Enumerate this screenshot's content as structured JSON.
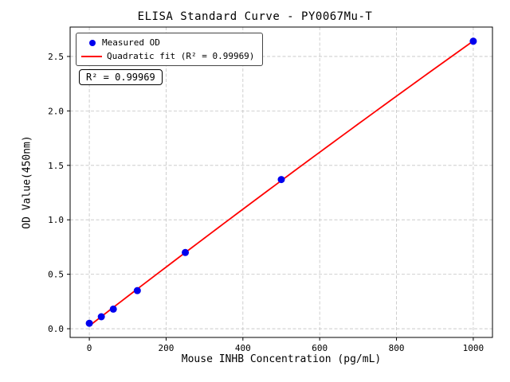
{
  "chart_data": {
    "type": "scatter",
    "title": "ELISA Standard Curve - PY0067Mu-T",
    "xlabel": "Mouse INHB Concentration (pg/mL)",
    "ylabel": "OD Value(450nm)",
    "xlim": [
      -50,
      1050
    ],
    "ylim": [
      -0.08,
      2.77
    ],
    "x_ticks": [
      0,
      200,
      400,
      600,
      800,
      1000
    ],
    "y_ticks": [
      0.0,
      0.5,
      1.0,
      1.5,
      2.0,
      2.5
    ],
    "grid": true,
    "legend_position": "upper-left",
    "series": [
      {
        "name": "Measured OD",
        "type": "scatter",
        "color": "#0000ee",
        "x": [
          0,
          31.25,
          62.5,
          125,
          250,
          500,
          1000
        ],
        "y": [
          0.05,
          0.11,
          0.18,
          0.35,
          0.7,
          1.37,
          2.64
        ]
      },
      {
        "name": "Quadratic fit (R² = 0.99969)",
        "type": "line",
        "color": "#ff0000",
        "fit": {
          "a": -1.0284e-07,
          "b": 0.0027187,
          "c": 0.026385,
          "x_min": 0,
          "x_max": 1000
        }
      }
    ],
    "annotation": {
      "text": "R² = 0.99969"
    },
    "r_squared": "0.99969"
  }
}
